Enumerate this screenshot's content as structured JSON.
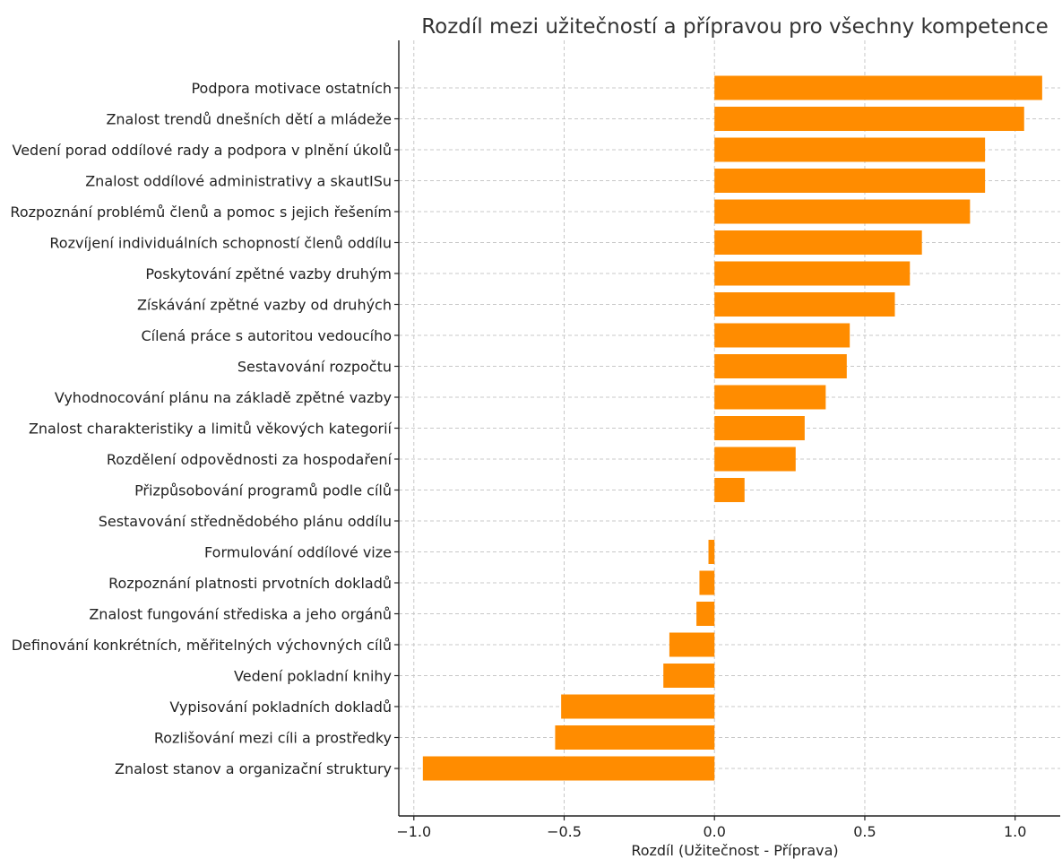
{
  "chart_data": {
    "type": "bar",
    "orientation": "horizontal",
    "title": "Rozdíl mezi užitečností a přípravou pro všechny kompetence",
    "xlabel": "Rozdíl (Užitečnost - Příprava)",
    "ylabel": "",
    "xlim": [
      -1.05,
      1.15
    ],
    "xticks": [
      -1.0,
      -0.5,
      0.0,
      0.5,
      1.0
    ],
    "xtick_labels": [
      "−1.0",
      "−0.5",
      "0.0",
      "0.5",
      "1.0"
    ],
    "grid": true,
    "bar_color": "#ff8c00",
    "categories": [
      "Podpora motivace ostatních",
      "Znalost trendů dnešních dětí a mládeže",
      "Vedení porad oddílové rady a podpora v plnění úkolů",
      "Znalost oddílové administrativy a skautISu",
      "Rozpoznání problémů členů a pomoc s jejich řešením",
      "Rozvíjení individuálních schopností členů oddílu",
      "Poskytování zpětné vazby druhým",
      "Získávání zpětné vazby od druhých",
      "Cílená práce s autoritou vedoucího",
      "Sestavování rozpočtu",
      "Vyhodnocování plánu na základě zpětné vazby",
      "Znalost charakteristiky a limitů věkových kategorií",
      "Rozdělení odpovědnosti za hospodaření",
      "Přizpůsobování programů podle cílů",
      "Sestavování střednědobého plánu oddílu",
      "Formulování oddílové vize",
      "Rozpoznání platnosti prvotních dokladů",
      "Znalost fungování střediska a jeho orgánů",
      "Definování konkrétních, měřitelných výchovných cílů",
      "Vedení pokladní knihy",
      "Vypisování pokladních dokladů",
      "Rozlišování mezi cíli a prostředky",
      "Znalost stanov a organizační struktury"
    ],
    "values": [
      1.09,
      1.03,
      0.9,
      0.9,
      0.85,
      0.69,
      0.65,
      0.6,
      0.45,
      0.44,
      0.37,
      0.3,
      0.27,
      0.1,
      0.0,
      -0.02,
      -0.05,
      -0.06,
      -0.15,
      -0.17,
      -0.51,
      -0.53,
      -0.97
    ]
  }
}
